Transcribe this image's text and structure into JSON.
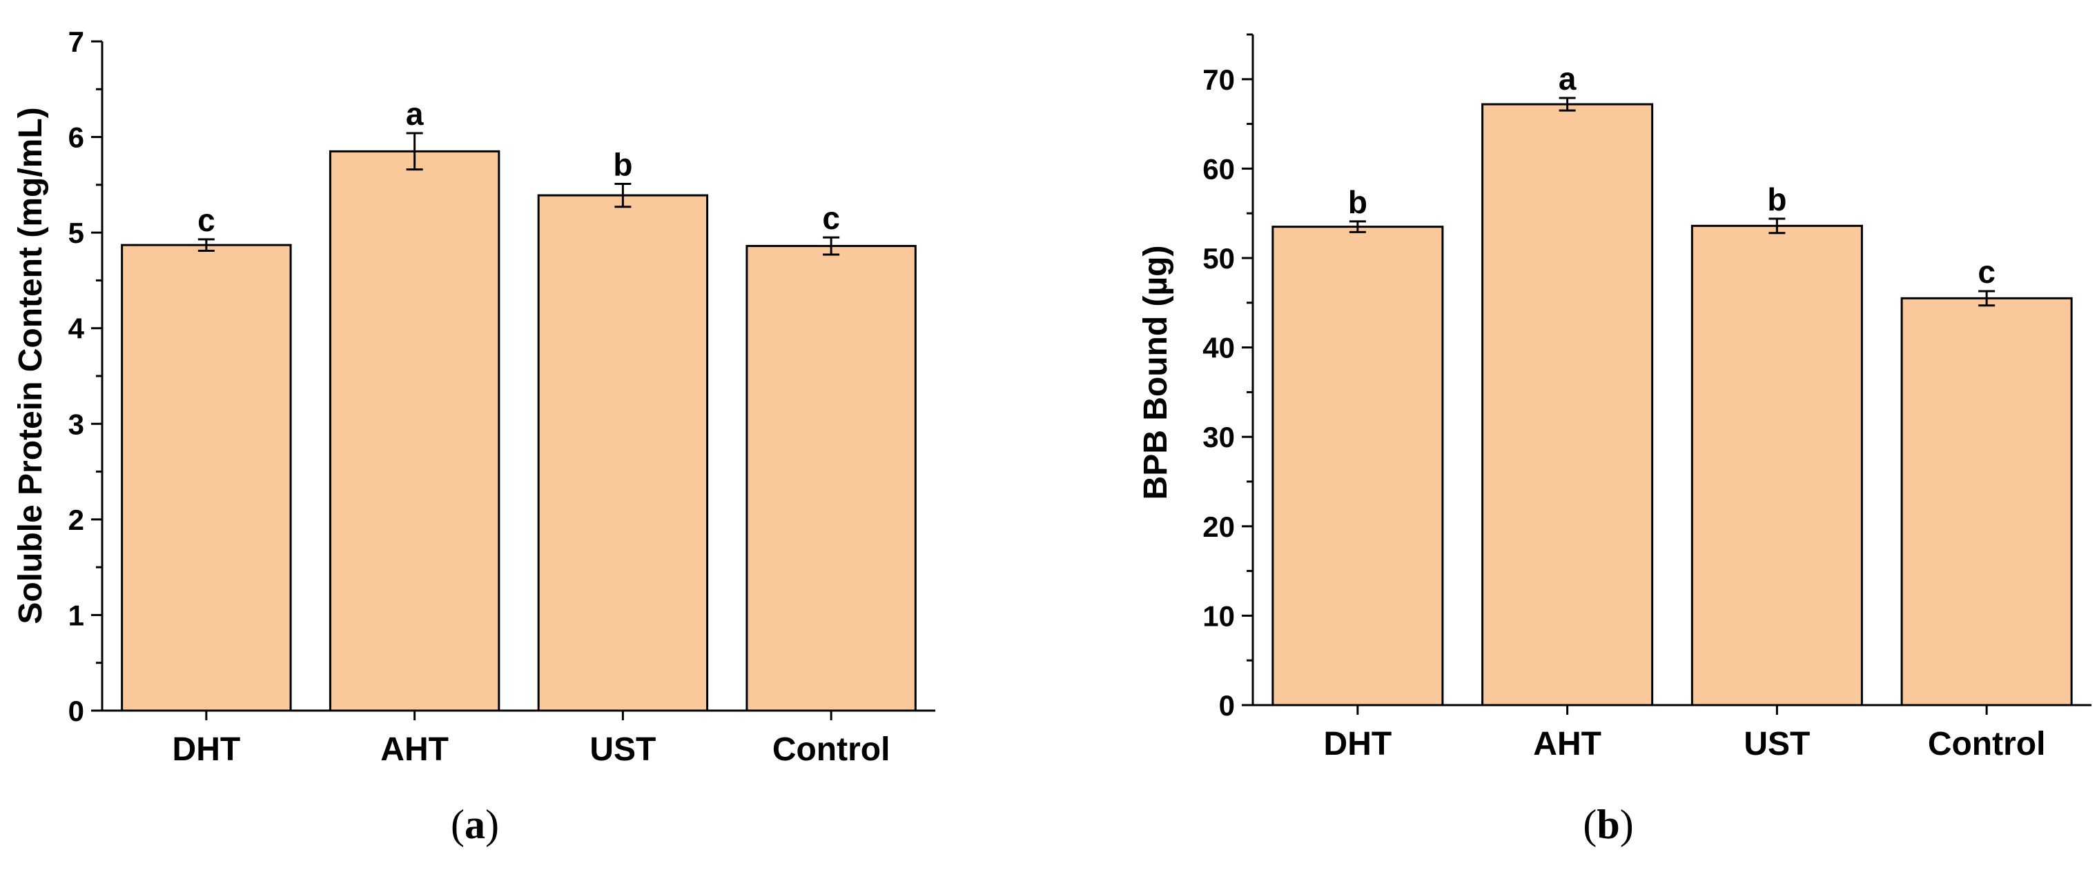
{
  "bar_color": "#f9c89b",
  "bar_edge_color": "#000000",
  "chart_data": [
    {
      "type": "bar",
      "panel": "a",
      "caption": {
        "open": "(",
        "letter": "a",
        "close": ")"
      },
      "title": "",
      "xlabel": "",
      "ylabel": "Soluble Protein Content (mg/mL)",
      "ylim": [
        0,
        7
      ],
      "yticks": [
        0,
        1,
        2,
        3,
        4,
        5,
        6,
        7
      ],
      "categories": [
        "DHT",
        "AHT",
        "UST",
        "Control"
      ],
      "values": [
        4.87,
        5.85,
        5.39,
        4.86
      ],
      "errors": [
        0.06,
        0.19,
        0.12,
        0.09
      ],
      "significance": [
        "c",
        "a",
        "b",
        "c"
      ]
    },
    {
      "type": "bar",
      "panel": "b",
      "caption": {
        "open": "(",
        "letter": "b",
        "close": ")"
      },
      "title": "",
      "xlabel": "",
      "ylabel": "BPB Bound (µg)",
      "ylim": [
        0,
        75
      ],
      "yticks": [
        0,
        10,
        20,
        30,
        40,
        50,
        60,
        70
      ],
      "categories": [
        "DHT",
        "AHT",
        "UST",
        "Control"
      ],
      "values": [
        53.5,
        67.2,
        53.6,
        45.5
      ],
      "errors": [
        0.6,
        0.7,
        0.8,
        0.8
      ],
      "significance": [
        "b",
        "a",
        "b",
        "c"
      ]
    }
  ]
}
